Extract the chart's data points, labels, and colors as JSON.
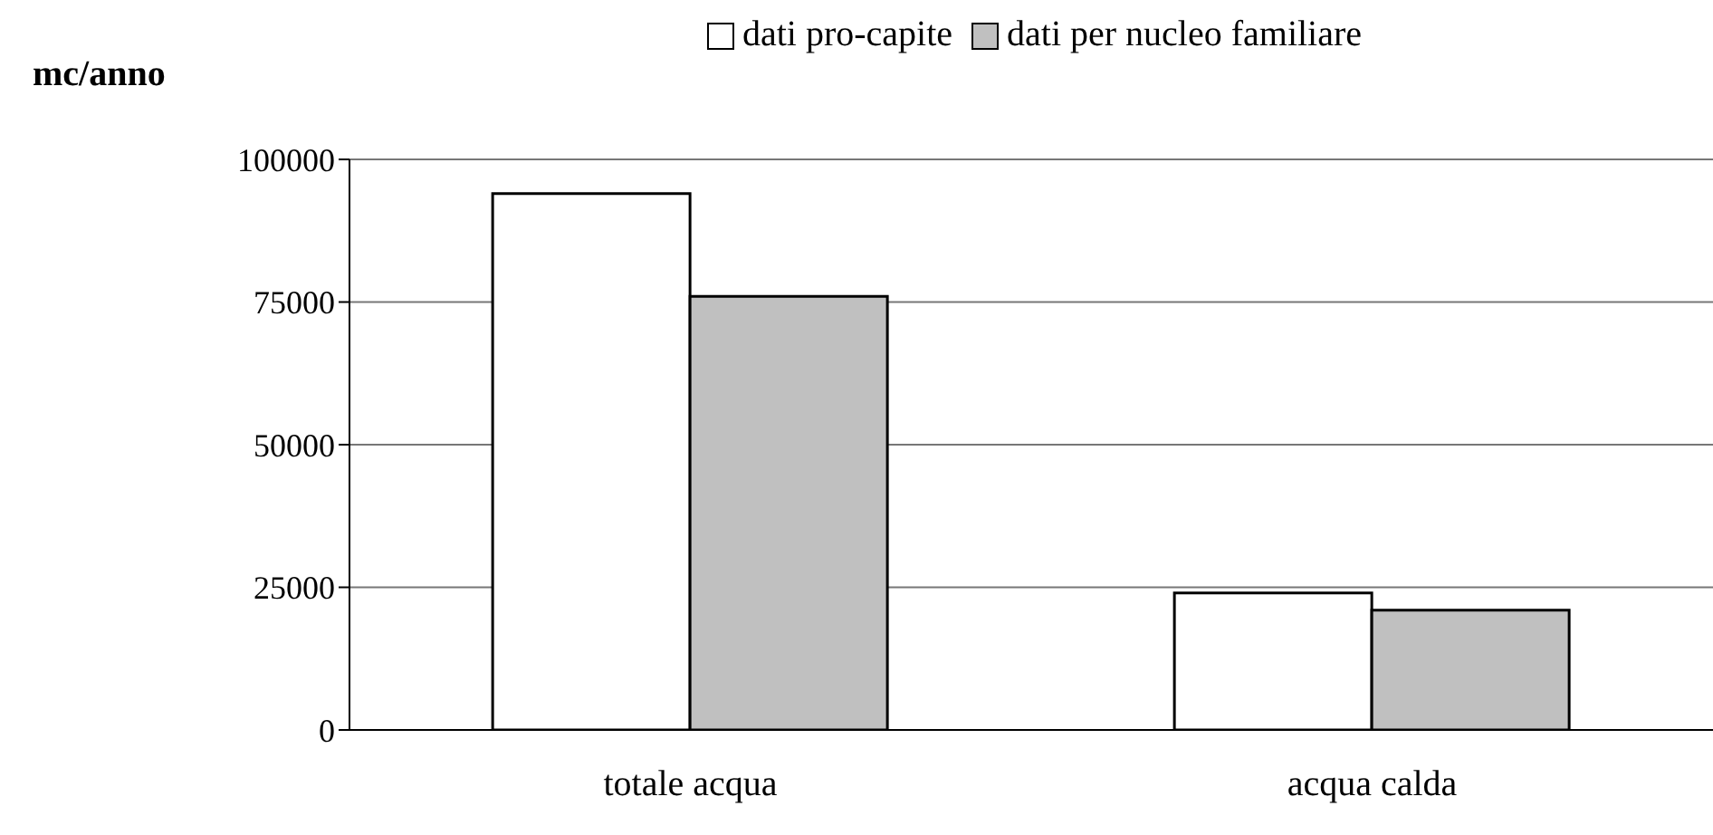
{
  "chart_data": {
    "type": "bar",
    "ylabel": "mc/anno",
    "categories": [
      "totale acqua",
      "acqua calda"
    ],
    "series": [
      {
        "name": "dati pro-capite",
        "color": "#ffffff",
        "values": [
          94000,
          24000
        ]
      },
      {
        "name": "dati per nucleo familiare",
        "color": "#c0c0c0",
        "values": [
          76000,
          21000
        ]
      }
    ],
    "ylim": [
      0,
      100000
    ],
    "yticks": [
      0,
      25000,
      50000,
      75000,
      100000
    ],
    "grid": "y",
    "legend": "top"
  }
}
